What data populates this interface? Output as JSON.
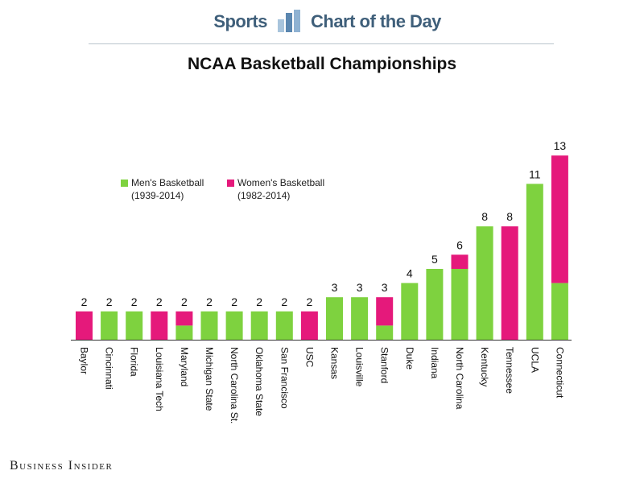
{
  "header": {
    "left": "Sports",
    "right": "Chart of the Day",
    "icon": "bar-chart-icon"
  },
  "footer": {
    "brand": "Business Insider"
  },
  "colors": {
    "men": "#7ed23f",
    "women": "#e5197b",
    "header": "#3f5f7a"
  },
  "legend": {
    "men": {
      "label": "Men's Basketball",
      "years": "(1939-2014)"
    },
    "women": {
      "label": "Women's Basketball",
      "years": "(1982-2014)"
    }
  },
  "chart_data": {
    "type": "bar",
    "stacked": true,
    "title": "NCAA Basketball Championships",
    "xlabel": "",
    "ylabel": "",
    "ylim": [
      0,
      13
    ],
    "grid": false,
    "categories": [
      "Baylor",
      "Cincinnati",
      "Florida",
      "Louisiana Tech",
      "Maryland",
      "Michigan State",
      "North Carolina St.",
      "Oklahoma State",
      "San Francisco",
      "USC",
      "Kansas",
      "Louisville",
      "Stanford",
      "Duke",
      "Indiana",
      "North Carolina",
      "Kentucky",
      "Tennessee",
      "UCLA",
      "Connecticut"
    ],
    "series": [
      {
        "name": "Men's Basketball (1939-2014)",
        "values": [
          0,
          2,
          2,
          0,
          1,
          2,
          2,
          2,
          2,
          0,
          3,
          3,
          1,
          4,
          5,
          5,
          8,
          0,
          11,
          4
        ]
      },
      {
        "name": "Women's Basketball (1982-2014)",
        "values": [
          2,
          0,
          0,
          2,
          1,
          0,
          0,
          0,
          0,
          2,
          0,
          0,
          2,
          0,
          0,
          1,
          0,
          8,
          0,
          9
        ]
      }
    ],
    "totals": [
      2,
      2,
      2,
      2,
      2,
      2,
      2,
      2,
      2,
      2,
      3,
      3,
      3,
      4,
      5,
      6,
      8,
      8,
      11,
      13
    ]
  }
}
